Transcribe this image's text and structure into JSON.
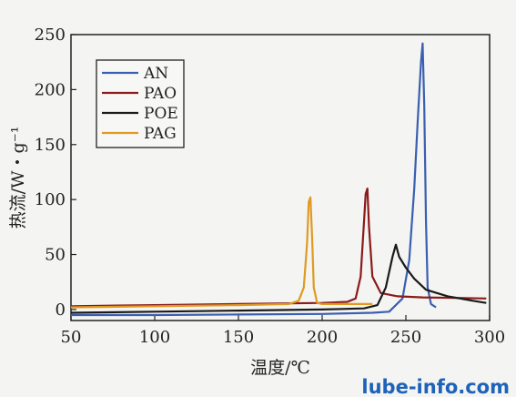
{
  "chart_data": {
    "type": "line",
    "title": "",
    "xlabel": "温度/℃",
    "ylabel": "热流/W・g⁻¹",
    "xlim": [
      50,
      300
    ],
    "ylim": [
      -10,
      250
    ],
    "xticks": [
      "50",
      "100",
      "150",
      "200",
      "250",
      "300"
    ],
    "yticks": [
      "0",
      "50",
      "100",
      "150",
      "200",
      "250"
    ],
    "legend_position": "top-left",
    "grid": false,
    "series": [
      {
        "name": "AN",
        "color": "#3a5fb0",
        "x": [
          50,
          100,
          150,
          200,
          230,
          240,
          248,
          252,
          255,
          257,
          259,
          260,
          261,
          262,
          263,
          265,
          268
        ],
        "y": [
          -5,
          -5,
          -4.5,
          -4,
          -3,
          -2,
          10,
          45,
          110,
          170,
          225,
          242,
          185,
          80,
          20,
          5,
          2
        ]
      },
      {
        "name": "PAO",
        "color": "#8b1a1a",
        "x": [
          50,
          100,
          150,
          200,
          215,
          220,
          223,
          225,
          226,
          227,
          228,
          230,
          235,
          245,
          260,
          280,
          298
        ],
        "y": [
          3,
          4,
          5,
          6,
          7,
          10,
          30,
          80,
          105,
          110,
          75,
          30,
          15,
          12,
          11,
          10.5,
          10
        ]
      },
      {
        "name": "POE",
        "color": "#1a1a1a",
        "x": [
          50,
          100,
          150,
          200,
          225,
          233,
          238,
          242,
          244,
          246,
          250,
          255,
          262,
          275,
          290,
          298
        ],
        "y": [
          -3,
          -2,
          -1,
          0,
          1,
          4,
          20,
          48,
          59,
          48,
          38,
          28,
          18,
          12,
          8,
          6
        ]
      },
      {
        "name": "PAG",
        "color": "#e09a22",
        "x": [
          50,
          100,
          150,
          180,
          186,
          189,
          191,
          192,
          193,
          194,
          195,
          197,
          200,
          230
        ],
        "y": [
          2,
          3,
          4,
          5,
          8,
          20,
          60,
          98,
          102,
          65,
          20,
          6,
          5,
          5
        ]
      }
    ]
  },
  "watermark": "lube-info.com"
}
